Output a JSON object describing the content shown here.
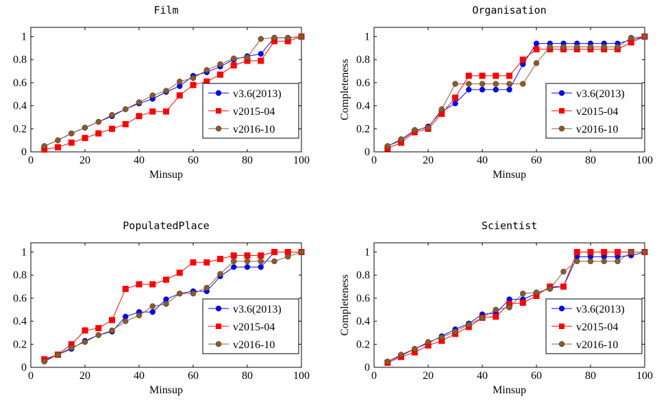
{
  "chart_data": [
    {
      "type": "line",
      "title": "Film",
      "xlabel": "Minsup",
      "ylabel": "",
      "xlim": [
        0,
        100
      ],
      "ylim": [
        0,
        1.08
      ],
      "xticks": [
        "0",
        "20",
        "40",
        "60",
        "80",
        "100"
      ],
      "yticks": [
        "0",
        "0.2",
        "0.4",
        "0.6",
        "0.8",
        "1"
      ],
      "grid": false,
      "legend": "lower-right",
      "x": [
        5,
        10,
        15,
        20,
        25,
        30,
        35,
        40,
        45,
        50,
        55,
        60,
        65,
        70,
        75,
        80,
        85,
        90,
        95,
        100
      ],
      "series": [
        {
          "name": "v3.6(2013)",
          "color": "#0000ff",
          "marker": "circle",
          "values": [
            0.05,
            0.1,
            0.16,
            0.21,
            0.26,
            0.31,
            0.37,
            0.42,
            0.46,
            0.52,
            0.57,
            0.66,
            0.69,
            0.74,
            0.8,
            0.83,
            0.85,
            0.99,
            0.99,
            1.0
          ]
        },
        {
          "name": "v2015-04",
          "color": "#ff0000",
          "marker": "square",
          "values": [
            0.02,
            0.04,
            0.08,
            0.12,
            0.16,
            0.2,
            0.24,
            0.31,
            0.35,
            0.35,
            0.49,
            0.58,
            0.61,
            0.67,
            0.75,
            0.79,
            0.79,
            0.96,
            0.96,
            1.0
          ]
        },
        {
          "name": "v2016-10",
          "color": "#8b5a2b",
          "marker": "circle",
          "values": [
            0.05,
            0.1,
            0.16,
            0.21,
            0.26,
            0.32,
            0.37,
            0.43,
            0.49,
            0.53,
            0.61,
            0.64,
            0.71,
            0.76,
            0.81,
            0.82,
            0.98,
            0.99,
            0.99,
            1.0
          ]
        }
      ]
    },
    {
      "type": "line",
      "title": "Organisation",
      "xlabel": "Minsup",
      "ylabel": "Completeness",
      "xlim": [
        0,
        100
      ],
      "ylim": [
        0,
        1.08
      ],
      "xticks": [
        "0",
        "20",
        "40",
        "60",
        "80",
        "100"
      ],
      "yticks": [
        "0",
        "0.2",
        "0.4",
        "0.6",
        "0.8",
        "1"
      ],
      "grid": false,
      "legend": "lower-right",
      "x": [
        5,
        10,
        15,
        20,
        25,
        30,
        35,
        40,
        45,
        50,
        55,
        60,
        65,
        70,
        75,
        80,
        85,
        90,
        95,
        100
      ],
      "series": [
        {
          "name": "v3.6(2013)",
          "color": "#0000ff",
          "marker": "circle",
          "values": [
            0.05,
            0.1,
            0.18,
            0.22,
            0.35,
            0.42,
            0.54,
            0.54,
            0.54,
            0.54,
            0.76,
            0.94,
            0.94,
            0.94,
            0.94,
            0.94,
            0.94,
            0.94,
            0.97,
            1.0
          ]
        },
        {
          "name": "v2015-04",
          "color": "#ff0000",
          "marker": "square",
          "values": [
            0.03,
            0.08,
            0.17,
            0.2,
            0.33,
            0.47,
            0.66,
            0.66,
            0.66,
            0.66,
            0.8,
            0.89,
            0.89,
            0.89,
            0.89,
            0.89,
            0.89,
            0.89,
            0.95,
            1.0
          ]
        },
        {
          "name": "v2016-10",
          "color": "#8b5a2b",
          "marker": "circle",
          "values": [
            0.05,
            0.11,
            0.19,
            0.21,
            0.37,
            0.59,
            0.59,
            0.59,
            0.59,
            0.59,
            0.59,
            0.77,
            0.91,
            0.91,
            0.91,
            0.91,
            0.91,
            0.91,
            0.99,
            1.0
          ]
        }
      ]
    },
    {
      "type": "line",
      "title": "PopulatedPlace",
      "xlabel": "Minsup",
      "ylabel": "",
      "xlim": [
        0,
        100
      ],
      "ylim": [
        0,
        1.08
      ],
      "xticks": [
        "0",
        "20",
        "40",
        "60",
        "80",
        "100"
      ],
      "yticks": [
        "0",
        "0.2",
        "0.4",
        "0.6",
        "0.8",
        "1"
      ],
      "grid": false,
      "legend": "lower-right",
      "x": [
        5,
        10,
        15,
        20,
        25,
        30,
        35,
        40,
        45,
        50,
        55,
        60,
        65,
        70,
        75,
        80,
        85,
        90,
        95,
        100
      ],
      "series": [
        {
          "name": "v3.6(2013)",
          "color": "#0000ff",
          "marker": "circle",
          "values": [
            0.06,
            0.11,
            0.16,
            0.23,
            0.28,
            0.31,
            0.44,
            0.48,
            0.48,
            0.59,
            0.64,
            0.66,
            0.66,
            0.79,
            0.87,
            0.87,
            0.87,
            1.0,
            1.0,
            1.0
          ]
        },
        {
          "name": "v2015-04",
          "color": "#ff0000",
          "marker": "square",
          "values": [
            0.07,
            0.11,
            0.2,
            0.32,
            0.34,
            0.41,
            0.68,
            0.72,
            0.72,
            0.76,
            0.82,
            0.91,
            0.91,
            0.94,
            0.97,
            0.97,
            0.97,
            1.0,
            1.0,
            1.0
          ]
        },
        {
          "name": "v2016-10",
          "color": "#8b5a2b",
          "marker": "circle",
          "values": [
            0.05,
            0.11,
            0.17,
            0.22,
            0.28,
            0.32,
            0.4,
            0.45,
            0.53,
            0.55,
            0.64,
            0.64,
            0.69,
            0.81,
            0.92,
            0.92,
            0.92,
            0.92,
            0.96,
            1.0
          ]
        }
      ]
    },
    {
      "type": "line",
      "title": "Scientist",
      "xlabel": "Minsup",
      "ylabel": "Completeness",
      "xlim": [
        0,
        100
      ],
      "ylim": [
        0,
        1.08
      ],
      "xticks": [
        "0",
        "20",
        "40",
        "60",
        "80",
        "100"
      ],
      "yticks": [
        "0",
        "0.2",
        "0.4",
        "0.6",
        "0.8",
        "1"
      ],
      "grid": false,
      "legend": "lower-right",
      "x": [
        5,
        10,
        15,
        20,
        25,
        30,
        35,
        40,
        45,
        50,
        55,
        60,
        65,
        70,
        75,
        80,
        85,
        90,
        95,
        100
      ],
      "series": [
        {
          "name": "v3.6(2013)",
          "color": "#0000ff",
          "marker": "circle",
          "values": [
            0.05,
            0.1,
            0.16,
            0.21,
            0.27,
            0.33,
            0.38,
            0.46,
            0.47,
            0.59,
            0.59,
            0.64,
            0.69,
            0.7,
            0.96,
            0.96,
            0.96,
            0.96,
            0.97,
            1.0
          ]
        },
        {
          "name": "v2015-04",
          "color": "#ff0000",
          "marker": "square",
          "values": [
            0.04,
            0.09,
            0.13,
            0.19,
            0.23,
            0.29,
            0.35,
            0.43,
            0.44,
            0.55,
            0.56,
            0.62,
            0.7,
            0.7,
            1.0,
            1.0,
            1.0,
            1.0,
            1.0,
            1.0
          ]
        },
        {
          "name": "v2016-10",
          "color": "#8b5a2b",
          "marker": "circle",
          "values": [
            0.05,
            0.11,
            0.16,
            0.22,
            0.26,
            0.31,
            0.37,
            0.43,
            0.5,
            0.52,
            0.64,
            0.65,
            0.68,
            0.83,
            0.92,
            0.92,
            0.92,
            0.92,
            1.0,
            1.0
          ]
        }
      ]
    }
  ]
}
